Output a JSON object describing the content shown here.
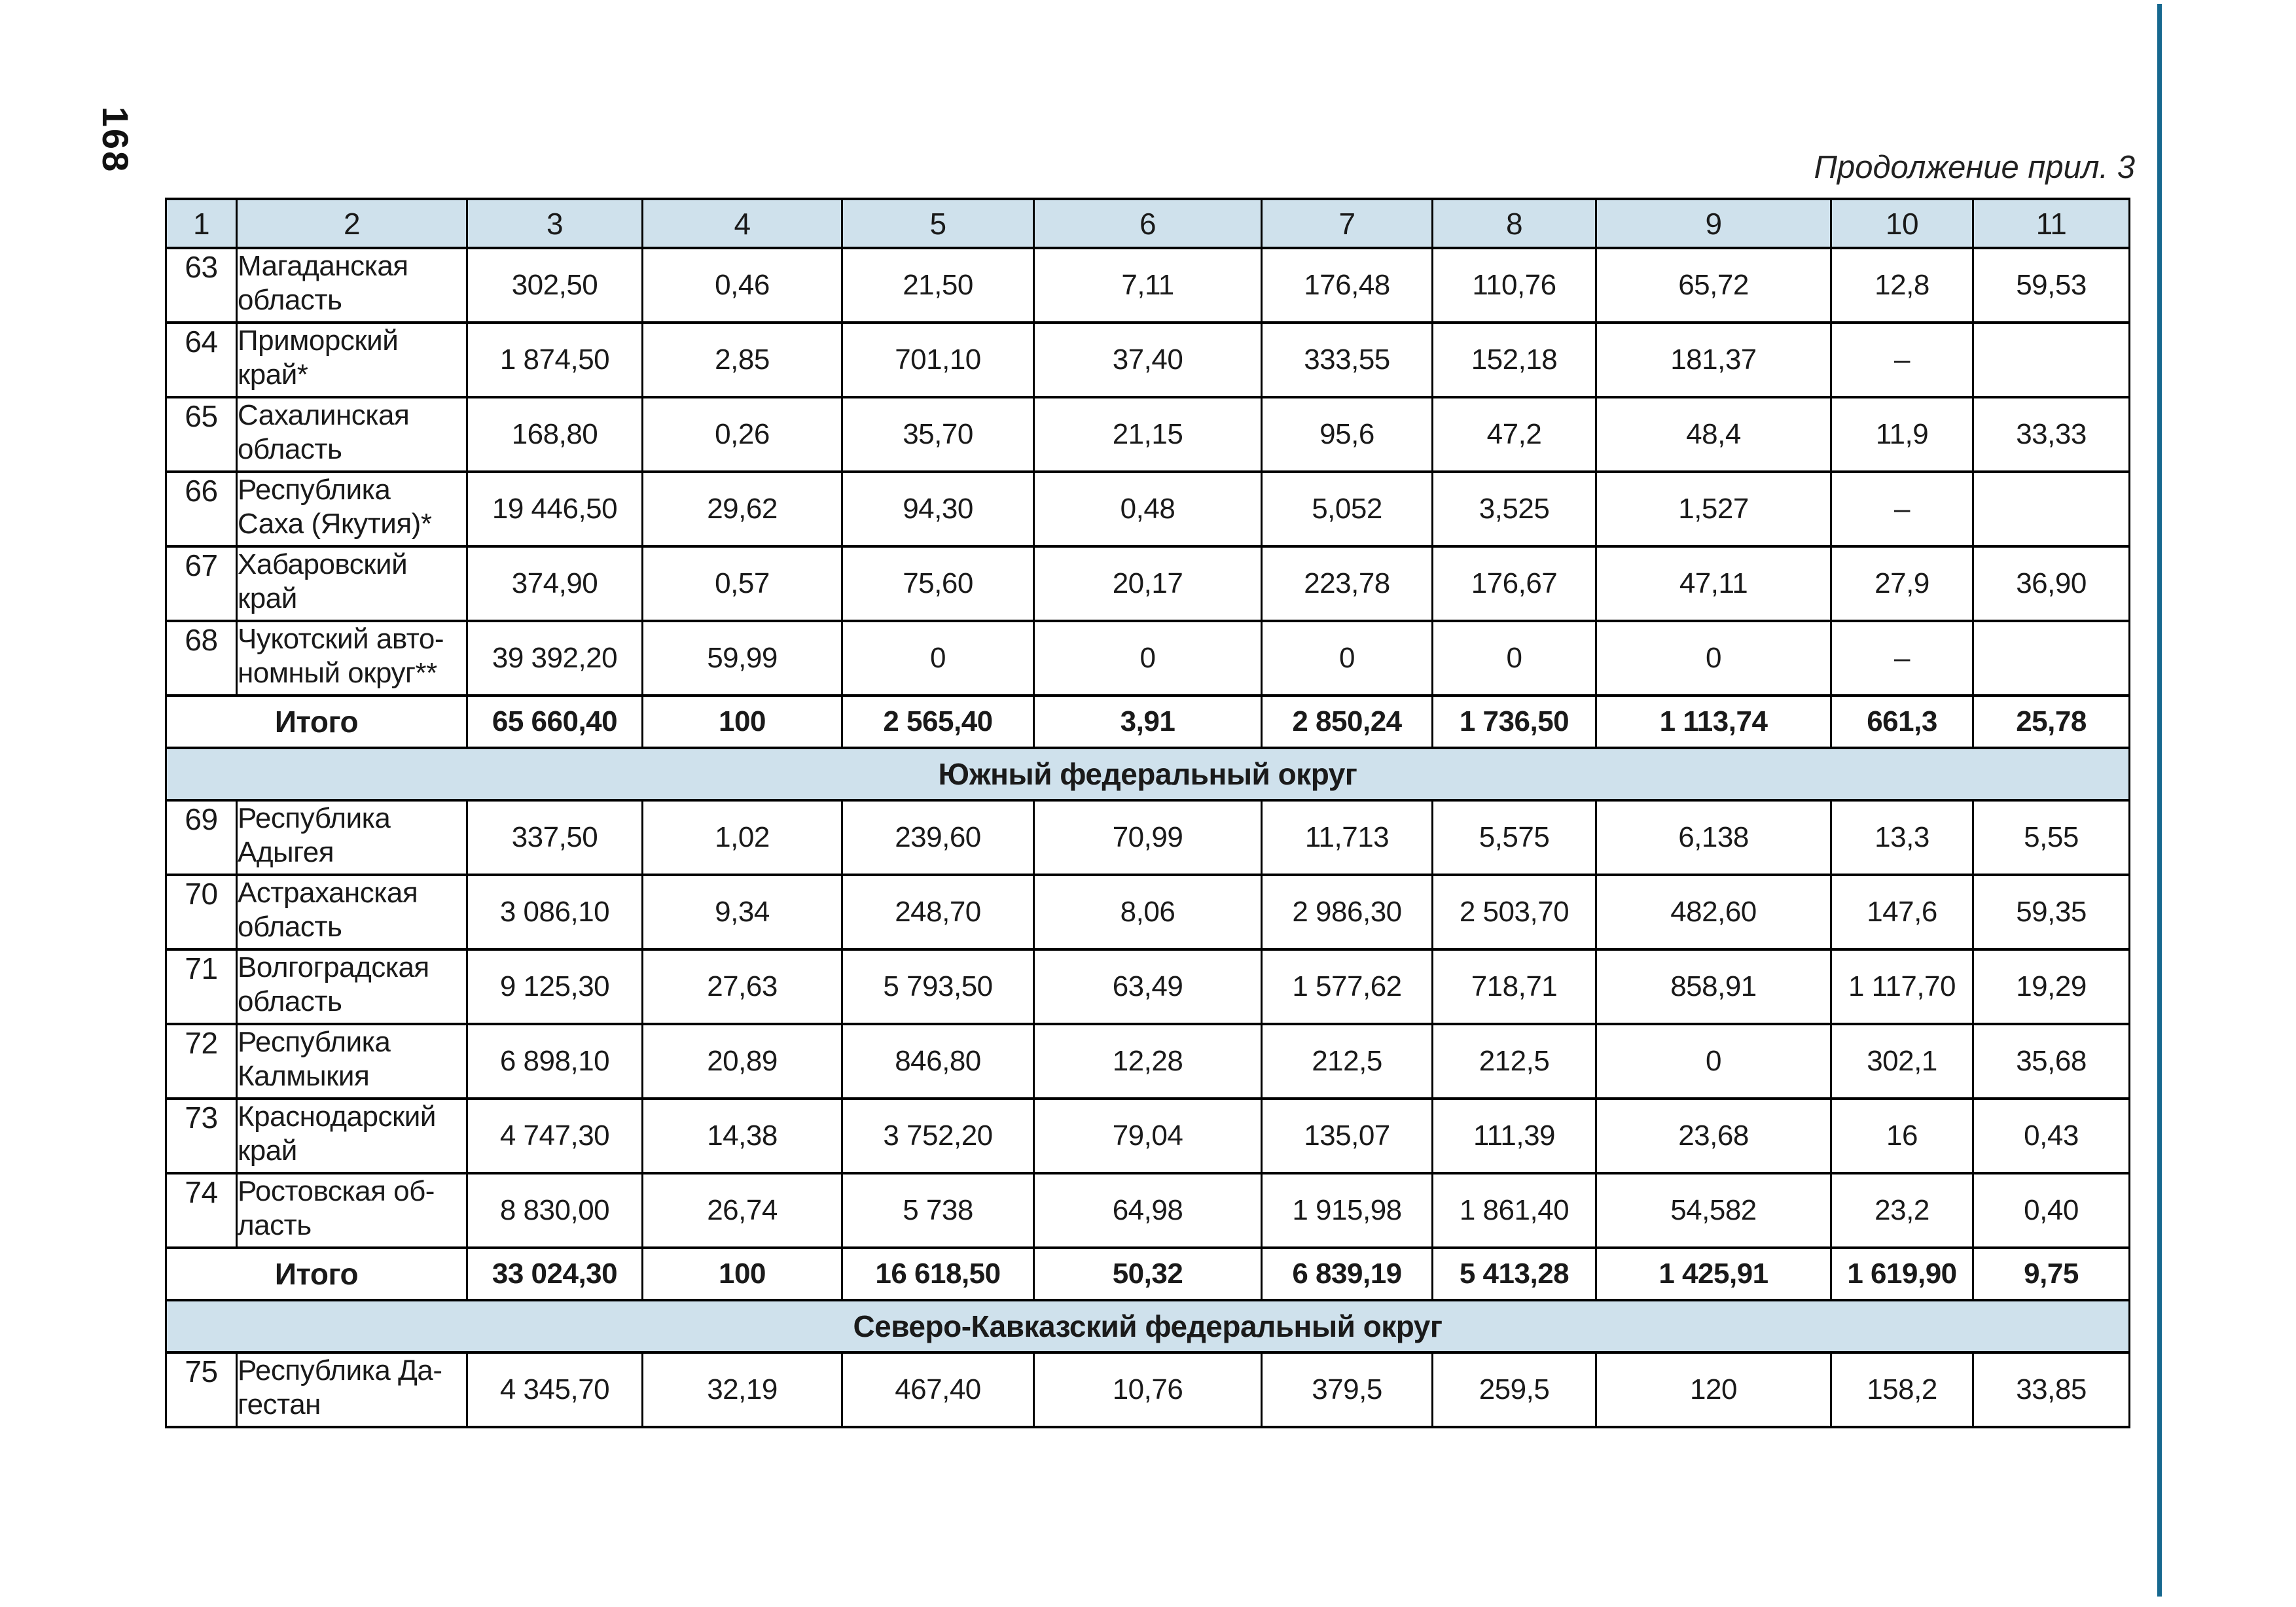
{
  "page": {
    "number": "168",
    "continuation_note": "Продолжение прил. 3"
  },
  "colors": {
    "header_bg": "#cfe1ec",
    "accent_rule": "#16688f",
    "table_border": "#000000"
  },
  "table": {
    "column_headers": [
      "1",
      "2",
      "3",
      "4",
      "5",
      "6",
      "7",
      "8",
      "9",
      "10",
      "11"
    ],
    "total_label": "Итого",
    "rows": [
      {
        "type": "data",
        "num": "63",
        "region": "Магаданская\nобласть",
        "values": [
          "302,50",
          "0,46",
          "21,50",
          "7,11",
          "176,48",
          "110,76",
          "65,72",
          "12,8",
          "59,53"
        ]
      },
      {
        "type": "data",
        "num": "64",
        "region": "Приморский\nкрай*",
        "values": [
          "1 874,50",
          "2,85",
          "701,10",
          "37,40",
          "333,55",
          "152,18",
          "181,37",
          "–",
          ""
        ]
      },
      {
        "type": "data",
        "num": "65",
        "region": "Сахалинская\nобласть",
        "values": [
          "168,80",
          "0,26",
          "35,70",
          "21,15",
          "95,6",
          "47,2",
          "48,4",
          "11,9",
          "33,33"
        ]
      },
      {
        "type": "data",
        "num": "66",
        "region": "Республика\nСаха (Якутия)*",
        "values": [
          "19 446,50",
          "29,62",
          "94,30",
          "0,48",
          "5,052",
          "3,525",
          "1,527",
          "–",
          ""
        ]
      },
      {
        "type": "data",
        "num": "67",
        "region": "Хабаровский\nкрай",
        "values": [
          "374,90",
          "0,57",
          "75,60",
          "20,17",
          "223,78",
          "176,67",
          "47,11",
          "27,9",
          "36,90"
        ]
      },
      {
        "type": "data",
        "num": "68",
        "region": "Чукотский авто-\nномный округ**",
        "values": [
          "39 392,20",
          "59,99",
          "0",
          "0",
          "0",
          "0",
          "0",
          "–",
          ""
        ]
      },
      {
        "type": "total",
        "label": "Итого",
        "values": [
          "65 660,40",
          "100",
          "2 565,40",
          "3,91",
          "2 850,24",
          "1 736,50",
          "1 113,74",
          "661,3",
          "25,78"
        ]
      },
      {
        "type": "section",
        "label": "Южный федеральный округ"
      },
      {
        "type": "data",
        "num": "69",
        "region": "Республика\nАдыгея",
        "values": [
          "337,50",
          "1,02",
          "239,60",
          "70,99",
          "11,713",
          "5,575",
          "6,138",
          "13,3",
          "5,55"
        ]
      },
      {
        "type": "data",
        "num": "70",
        "region": "Астраханская\nобласть",
        "values": [
          "3 086,10",
          "9,34",
          "248,70",
          "8,06",
          "2 986,30",
          "2 503,70",
          "482,60",
          "147,6",
          "59,35"
        ]
      },
      {
        "type": "data",
        "num": "71",
        "region": "Волгоградская\nобласть",
        "values": [
          "9 125,30",
          "27,63",
          "5 793,50",
          "63,49",
          "1 577,62",
          "718,71",
          "858,91",
          "1 117,70",
          "19,29"
        ]
      },
      {
        "type": "data",
        "num": "72",
        "region": "Республика\nКалмыкия",
        "values": [
          "6 898,10",
          "20,89",
          "846,80",
          "12,28",
          "212,5",
          "212,5",
          "0",
          "302,1",
          "35,68"
        ]
      },
      {
        "type": "data",
        "num": "73",
        "region": "Краснодарский\nкрай",
        "values": [
          "4 747,30",
          "14,38",
          "3 752,20",
          "79,04",
          "135,07",
          "111,39",
          "23,68",
          "16",
          "0,43"
        ]
      },
      {
        "type": "data",
        "num": "74",
        "region": "Ростовская об-\nласть",
        "values": [
          "8 830,00",
          "26,74",
          "5 738",
          "64,98",
          "1 915,98",
          "1 861,40",
          "54,582",
          "23,2",
          "0,40"
        ]
      },
      {
        "type": "total",
        "label": "Итого",
        "values": [
          "33 024,30",
          "100",
          "16 618,50",
          "50,32",
          "6 839,19",
          "5 413,28",
          "1 425,91",
          "1 619,90",
          "9,75"
        ]
      },
      {
        "type": "section",
        "label": "Северо-Кавказский федеральный округ"
      },
      {
        "type": "data",
        "num": "75",
        "region": "Республика Да-\nгестан",
        "values": [
          "4 345,70",
          "32,19",
          "467,40",
          "10,76",
          "379,5",
          "259,5",
          "120",
          "158,2",
          "33,85"
        ]
      }
    ]
  }
}
